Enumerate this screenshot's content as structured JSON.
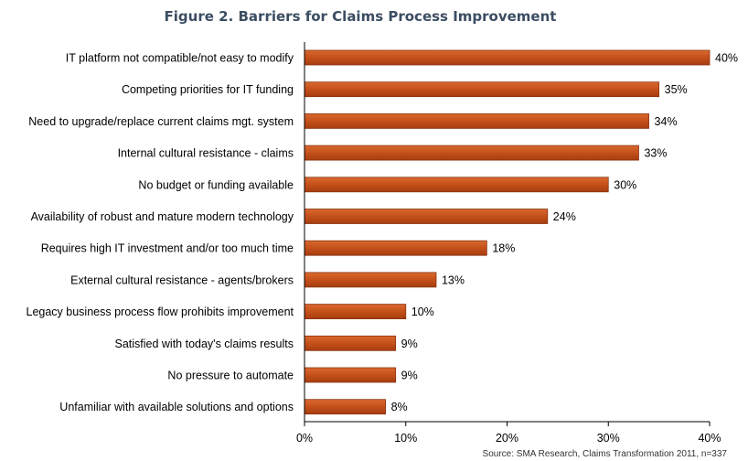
{
  "chart_data": {
    "type": "bar",
    "orientation": "horizontal",
    "title": "Figure 2. Barriers for Claims Process Improvement",
    "categories": [
      "IT platform not compatible/not easy to modify",
      "Competing priorities for IT funding",
      "Need to upgrade/replace current claims mgt. system",
      "Internal cultural resistance - claims",
      "No budget or funding available",
      "Availability of robust and mature modern technology",
      "Requires high IT investment and/or too much time",
      "External cultural resistance - agents/brokers",
      "Legacy business process flow prohibits improvement",
      "Satisfied with today's claims results",
      "No pressure to automate",
      "Unfamiliar with available solutions and options"
    ],
    "values": [
      40,
      35,
      34,
      33,
      30,
      24,
      18,
      13,
      10,
      9,
      9,
      8
    ],
    "value_labels": [
      "40%",
      "35%",
      "34%",
      "33%",
      "30%",
      "24%",
      "18%",
      "13%",
      "10%",
      "9%",
      "9%",
      "8%"
    ],
    "xlim": [
      0,
      40
    ],
    "ticks": [
      0,
      10,
      20,
      30,
      40
    ],
    "tick_labels": [
      "0%",
      "10%",
      "20%",
      "30%",
      "40%"
    ],
    "grid": false,
    "legend": "none",
    "bar_color": "#c4501a",
    "bar_edge_color": "#8a3310",
    "source": "Source: SMA Research, Claims Transformation 2011, n=337"
  }
}
